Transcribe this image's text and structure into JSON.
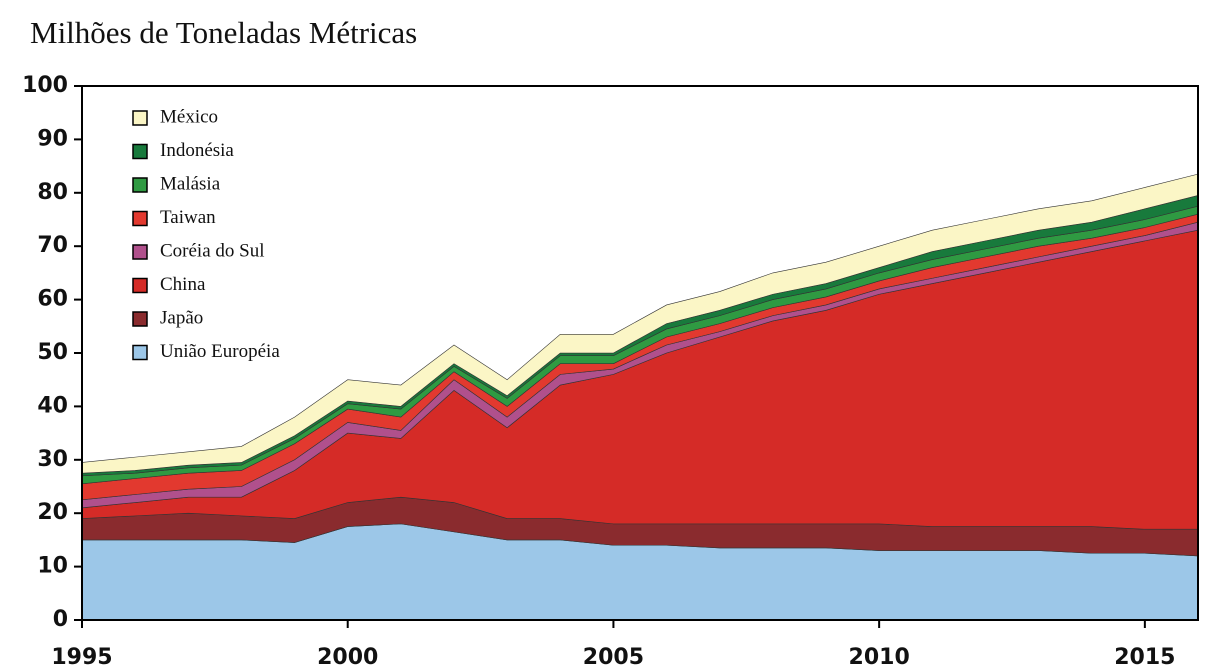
{
  "chart_data": {
    "type": "stacked_area",
    "title": "Milhões de Toneladas Métricas",
    "x": [
      1995,
      1996,
      1997,
      1998,
      1999,
      2000,
      2001,
      2002,
      2003,
      2004,
      2005,
      2006,
      2007,
      2008,
      2009,
      2010,
      2011,
      2012,
      2013,
      2014,
      2015,
      2016
    ],
    "xlim": [
      1995,
      2016
    ],
    "xticks": [
      1995,
      2000,
      2005,
      2010,
      2015
    ],
    "ylim": [
      0,
      100
    ],
    "yticks": [
      0,
      10,
      20,
      30,
      40,
      50,
      60,
      70,
      80,
      90,
      100
    ],
    "legend": "top-left",
    "series": [
      {
        "name": "União Européia",
        "color": "#9cc7e8",
        "values": [
          15,
          15,
          15,
          15,
          14.5,
          17.5,
          18,
          16.5,
          15,
          15,
          14,
          14,
          13.5,
          13.5,
          13.5,
          13,
          13,
          13,
          13,
          12.5,
          12.5,
          12
        ]
      },
      {
        "name": "Japão",
        "color": "#8a2b2e",
        "values": [
          4,
          4.5,
          5,
          4.5,
          4.5,
          4.5,
          5,
          5.5,
          4,
          4,
          4,
          4,
          4.5,
          4.5,
          4.5,
          5,
          4.5,
          4.5,
          4.5,
          5,
          4.5,
          5
        ]
      },
      {
        "name": "China",
        "color": "#d52b27",
        "values": [
          2,
          2.5,
          3,
          3.5,
          9,
          13,
          11,
          21,
          17,
          25,
          28,
          32,
          35,
          38,
          40,
          43,
          45.5,
          47.5,
          49.5,
          51.5,
          54,
          56
        ]
      },
      {
        "name": "Coréia do Sul",
        "color": "#b0508c",
        "values": [
          1.5,
          1.5,
          1.5,
          2,
          2,
          2,
          1.5,
          2,
          2,
          2,
          1,
          1.5,
          1,
          1,
          1,
          1,
          1,
          1,
          1,
          1,
          1,
          1.5
        ]
      },
      {
        "name": "Taiwan",
        "color": "#e2392f",
        "values": [
          3,
          3,
          3,
          3,
          3,
          2.5,
          2.5,
          1.5,
          2,
          2,
          1,
          1.5,
          1.5,
          1.5,
          1.5,
          1.5,
          2,
          2,
          2,
          1.5,
          1.5,
          1.5
        ]
      },
      {
        "name": "Malásia",
        "color": "#2f9a42",
        "values": [
          1.5,
          1,
          1,
          1,
          1,
          1,
          1.5,
          1,
          1.5,
          1.5,
          1.5,
          1.5,
          1.5,
          1.5,
          1.5,
          1.5,
          1.5,
          1.5,
          1.5,
          1.5,
          1.5,
          1.5
        ]
      },
      {
        "name": "Indonésia",
        "color": "#187a3c",
        "values": [
          0.5,
          0.5,
          0.5,
          0.5,
          0.5,
          0.5,
          0.5,
          0.5,
          0.5,
          0.5,
          0.5,
          1,
          1,
          1,
          1,
          1,
          1.5,
          1.5,
          1.5,
          1.5,
          2,
          2
        ]
      },
      {
        "name": "México",
        "color": "#fbf6c6",
        "values": [
          2,
          2.5,
          2.5,
          3,
          3.5,
          4,
          4,
          3.5,
          3,
          3.5,
          3.5,
          3.5,
          3.5,
          4,
          4,
          4,
          4,
          4,
          4,
          4,
          4,
          4
        ]
      }
    ]
  }
}
